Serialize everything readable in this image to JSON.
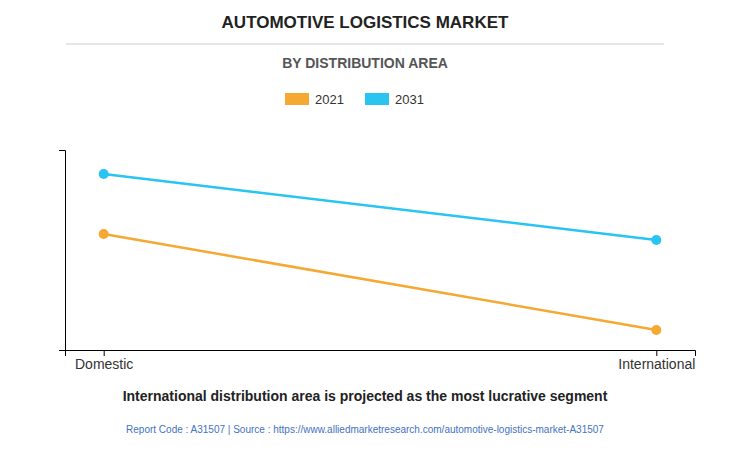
{
  "chart_data": {
    "type": "line",
    "title": "AUTOMOTIVE LOGISTICS MARKET",
    "subtitle": "BY DISTRIBUTION AREA",
    "categories": [
      "Domestic",
      "International"
    ],
    "series": [
      {
        "name": "2021",
        "color": "#f5a832",
        "values": [
          58,
          10
        ],
        "marker": "circle"
      },
      {
        "name": "2031",
        "color": "#29c4f0",
        "values": [
          88,
          55
        ],
        "marker": "circle"
      }
    ],
    "ylim": [
      0,
      100
    ],
    "yticks": [],
    "grid": false,
    "legend": "top",
    "tick_labels": "x",
    "annotations": [
      "International distribution area is projected as the most lucrative segment",
      "Report Code : A31507  |  Source : https://www.alliedmarketresearch.com/automotive-logistics-market-A31507"
    ]
  }
}
